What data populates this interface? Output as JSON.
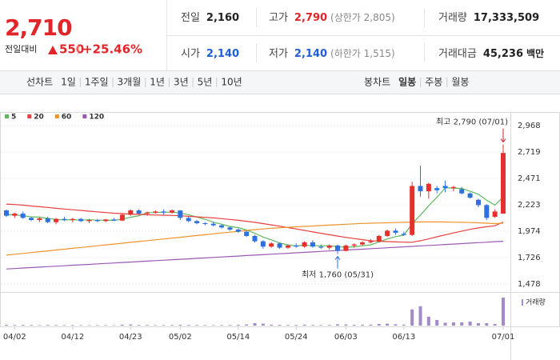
{
  "header": {
    "price": "2,710",
    "change_label": "전일대비",
    "change": "550",
    "change_rate": "+25.46%",
    "stats": [
      {
        "label": "전일",
        "value": "2,160",
        "color": "#222222"
      },
      {
        "label": "고가",
        "value": "2,790",
        "color": "#e0262b",
        "note": "(상한가 2,805)"
      },
      {
        "label": "거래량",
        "value": "17,333,509",
        "color": "#222222"
      },
      {
        "label": "시가",
        "value": "2,140",
        "color": "#1f5fd6"
      },
      {
        "label": "저가",
        "value": "2,140",
        "color": "#1f5fd6",
        "note": "(하한가 1,515)"
      },
      {
        "label": "거래대금",
        "value": "45,236",
        "color": "#222222",
        "note": "백만"
      }
    ]
  },
  "tabs": {
    "line_label": "선차트",
    "line": [
      "1일",
      "1주일",
      "3개월",
      "1년",
      "3년",
      "5년",
      "10년"
    ],
    "candle_label": "봉차트",
    "candle": [
      "일봉",
      "주봉",
      "월봉"
    ]
  },
  "chart_data": {
    "type": "candlestick",
    "categories": [
      null,
      "04/02",
      null,
      null,
      null,
      null,
      null,
      null,
      "04/12",
      null,
      null,
      null,
      null,
      null,
      null,
      "04/23",
      null,
      null,
      null,
      null,
      null,
      "05/02",
      null,
      null,
      null,
      null,
      null,
      null,
      "05/14",
      null,
      null,
      null,
      null,
      null,
      null,
      "05/24",
      null,
      null,
      null,
      null,
      null,
      "06/03",
      null,
      null,
      null,
      null,
      null,
      null,
      "06/13",
      null,
      null,
      null,
      null,
      null,
      null,
      null,
      null,
      null,
      null,
      null,
      "07/01"
    ],
    "open": [
      2170,
      2120,
      2140,
      2100,
      2080,
      2095,
      2060,
      2090,
      2080,
      2090,
      2070,
      2080,
      2070,
      2085,
      2075,
      2130,
      2170,
      2140,
      2150,
      2160,
      2150,
      2170,
      2100,
      2070,
      2050,
      2045,
      2030,
      2010,
      1990,
      1970,
      1930,
      1880,
      1830,
      1860,
      1820,
      1840,
      1830,
      1870,
      1830,
      1820,
      1840,
      1790,
      1840,
      1850,
      1870,
      1880,
      1930,
      1980,
      1950,
      1940,
      2400,
      2350,
      2380,
      2400,
      2380,
      2370,
      2330,
      2270,
      2220,
      2110,
      2140
    ],
    "high": [
      2180,
      2150,
      2160,
      2110,
      2110,
      2110,
      2100,
      2110,
      2100,
      2100,
      2090,
      2090,
      2090,
      2100,
      2140,
      2180,
      2180,
      2160,
      2170,
      2180,
      2180,
      2170,
      2110,
      2080,
      2060,
      2060,
      2040,
      2020,
      2000,
      1980,
      1940,
      1890,
      1870,
      1870,
      1850,
      1860,
      1880,
      1890,
      1850,
      1850,
      1850,
      1850,
      1860,
      1880,
      1900,
      1940,
      1990,
      2000,
      1970,
      2440,
      2590,
      2430,
      2400,
      2450,
      2400,
      2390,
      2340,
      2280,
      2230,
      2180,
      2790
    ],
    "low": [
      2110,
      2100,
      2090,
      2070,
      2060,
      2050,
      2040,
      2070,
      2060,
      2060,
      2050,
      2060,
      2060,
      2070,
      2070,
      2120,
      2130,
      2120,
      2140,
      2130,
      2140,
      2080,
      2060,
      2040,
      2030,
      2020,
      2000,
      1980,
      1960,
      1920,
      1870,
      1810,
      1820,
      1810,
      1810,
      1820,
      1820,
      1820,
      1810,
      1800,
      1760,
      1785,
      1820,
      1840,
      1860,
      1870,
      1920,
      1940,
      1930,
      1930,
      2300,
      2280,
      2330,
      2340,
      2350,
      2320,
      2280,
      2200,
      2080,
      2100,
      2140
    ],
    "close": [
      2120,
      2140,
      2100,
      2080,
      2095,
      2060,
      2090,
      2080,
      2090,
      2070,
      2080,
      2070,
      2085,
      2075,
      2130,
      2170,
      2140,
      2150,
      2160,
      2150,
      2170,
      2100,
      2070,
      2050,
      2045,
      2030,
      2010,
      1990,
      1970,
      1930,
      1880,
      1830,
      1860,
      1820,
      1840,
      1830,
      1870,
      1830,
      1820,
      1840,
      1790,
      1840,
      1850,
      1870,
      1880,
      1930,
      1980,
      1960,
      1940,
      2400,
      2350,
      2420,
      2360,
      2380,
      2390,
      2330,
      2290,
      2220,
      2100,
      2160,
      2710
    ],
    "up_color": "#e5302e",
    "down_color": "#2f6fe0",
    "series": [
      {
        "name": "5",
        "color": "#5cb85c",
        "values": [
          2130,
          2130,
          2120,
          2110,
          2107,
          2095,
          2085,
          2081,
          2083,
          2078,
          2082,
          2078,
          2079,
          2076,
          2088,
          2106,
          2120,
          2149,
          2150,
          2154,
          2154,
          2146,
          2130,
          2108,
          2087,
          2059,
          2041,
          2019,
          2009,
          1986,
          1956,
          1920,
          1894,
          1864,
          1846,
          1836,
          1844,
          1838,
          1838,
          1838,
          1830,
          1824,
          1828,
          1838,
          1846,
          1874,
          1902,
          1924,
          1938,
          2042,
          2126,
          2214,
          2294,
          2382,
          2380,
          2376,
          2350,
          2322,
          2266,
          2220,
          2296
        ]
      },
      {
        "name": "20",
        "color": "#e8403f",
        "values": [
          2230,
          2225,
          2220,
          2212,
          2205,
          2198,
          2190,
          2183,
          2176,
          2170,
          2163,
          2157,
          2150,
          2144,
          2140,
          2136,
          2133,
          2130,
          2127,
          2125,
          2123,
          2120,
          2115,
          2110,
          2105,
          2100,
          2093,
          2085,
          2077,
          2068,
          2058,
          2046,
          2034,
          2022,
          2009,
          1996,
          1982,
          1968,
          1955,
          1942,
          1929,
          1917,
          1906,
          1895,
          1886,
          1880,
          1877,
          1874,
          1872,
          1871,
          1885,
          1903,
          1922,
          1940,
          1958,
          1976,
          1992,
          2006,
          2017,
          2026,
          2060
        ]
      },
      {
        "name": "60",
        "color": "#f0932b",
        "values": [
          1750,
          1758,
          1766,
          1774,
          1782,
          1790,
          1798,
          1806,
          1814,
          1822,
          1830,
          1838,
          1846,
          1854,
          1862,
          1870,
          1878,
          1886,
          1894,
          1902,
          1910,
          1918,
          1926,
          1934,
          1942,
          1950,
          1958,
          1966,
          1974,
          1982,
          1990,
          1996,
          2002,
          2008,
          2012,
          2016,
          2020,
          2024,
          2028,
          2032,
          2036,
          2040,
          2044,
          2048,
          2050,
          2052,
          2054,
          2056,
          2058,
          2060,
          2062,
          2062,
          2062,
          2061,
          2060,
          2058,
          2056,
          2054,
          2050,
          2046,
          2050
        ]
      },
      {
        "name": "120",
        "color": "#9b59b6",
        "values": [
          1620,
          1624,
          1629,
          1633,
          1637,
          1642,
          1646,
          1650,
          1655,
          1659,
          1663,
          1668,
          1672,
          1676,
          1681,
          1685,
          1689,
          1694,
          1698,
          1702,
          1707,
          1711,
          1715,
          1720,
          1724,
          1728,
          1733,
          1737,
          1741,
          1746,
          1750,
          1754,
          1759,
          1763,
          1767,
          1772,
          1776,
          1780,
          1785,
          1789,
          1793,
          1798,
          1802,
          1806,
          1811,
          1815,
          1819,
          1824,
          1828,
          1832,
          1837,
          1841,
          1845,
          1850,
          1854,
          1858,
          1863,
          1867,
          1871,
          1876,
          1880
        ]
      }
    ],
    "volume_label": "거래량",
    "volume_color": "#a18bc8",
    "volume": [
      500000,
      400000,
      450000,
      350000,
      300000,
      400000,
      350000,
      300000,
      350000,
      300000,
      250000,
      300000,
      300000,
      250000,
      600000,
      700000,
      400000,
      350000,
      300000,
      300000,
      350000,
      500000,
      400000,
      350000,
      300000,
      300000,
      350000,
      400000,
      500000,
      700000,
      1500000,
      1200000,
      600000,
      500000,
      400000,
      400000,
      600000,
      400000,
      350000,
      400000,
      800000,
      700000,
      500000,
      500000,
      600000,
      1000000,
      1200000,
      800000,
      600000,
      10000000,
      12000000,
      5500000,
      3500000,
      1800000,
      2000000,
      2000000,
      2500000,
      1500000,
      1500000,
      1000000,
      17333509
    ],
    "high_annotation": "최고 2,790 (07/01)",
    "low_annotation": "최저 1,760 (05/31)",
    "ylim": [
      1426,
      3080
    ],
    "yticks": [
      {
        "value": 2968,
        "label": "2,968"
      },
      {
        "value": 2719,
        "label": "2,719"
      },
      {
        "value": 2471,
        "label": "2,471"
      },
      {
        "value": 2223,
        "label": "2,223"
      },
      {
        "value": 1974,
        "label": "1,974"
      },
      {
        "value": 1726,
        "label": "1,726"
      },
      {
        "value": 1478,
        "label": "1,478"
      }
    ],
    "grid": true
  }
}
